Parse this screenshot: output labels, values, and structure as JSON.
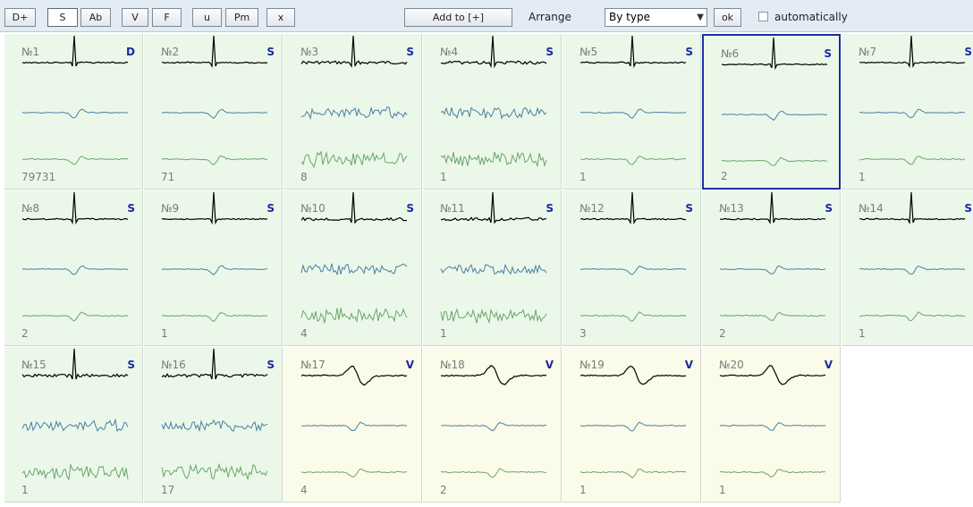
{
  "toolbar": {
    "buttons": [
      "D+",
      "S",
      "Ab",
      "V",
      "F",
      "u",
      "Pm",
      "x"
    ],
    "active_button": "S",
    "add_to_label": "Add to  [+]",
    "arrange_label": "Arrange",
    "arrange_value": "By type",
    "ok_label": "ok",
    "automatically_label": "automatically",
    "automatically_checked": false
  },
  "colors": {
    "lead1": "#000000",
    "lead2": "#4a7ea5",
    "lead3": "#6aa56a",
    "selected_border": "#1c2fa3",
    "type_letter": "#1a2aa0"
  },
  "cells": [
    {
      "num": "№1",
      "type": "D",
      "count": "79731",
      "bg": "green",
      "selected": false
    },
    {
      "num": "№2",
      "type": "S",
      "count": "71",
      "bg": "green",
      "selected": false
    },
    {
      "num": "№3",
      "type": "S",
      "count": "8",
      "bg": "green",
      "selected": false
    },
    {
      "num": "№4",
      "type": "S",
      "count": "1",
      "bg": "green",
      "selected": false
    },
    {
      "num": "№5",
      "type": "S",
      "count": "1",
      "bg": "green",
      "selected": false
    },
    {
      "num": "№6",
      "type": "S",
      "count": "2",
      "bg": "green",
      "selected": true
    },
    {
      "num": "№7",
      "type": "S",
      "count": "1",
      "bg": "green",
      "selected": false
    },
    {
      "num": "№8",
      "type": "S",
      "count": "2",
      "bg": "green",
      "selected": false
    },
    {
      "num": "№9",
      "type": "S",
      "count": "1",
      "bg": "green",
      "selected": false
    },
    {
      "num": "№10",
      "type": "S",
      "count": "4",
      "bg": "green",
      "selected": false
    },
    {
      "num": "№11",
      "type": "S",
      "count": "1",
      "bg": "green",
      "selected": false
    },
    {
      "num": "№12",
      "type": "S",
      "count": "3",
      "bg": "green",
      "selected": false
    },
    {
      "num": "№13",
      "type": "S",
      "count": "2",
      "bg": "green",
      "selected": false
    },
    {
      "num": "№14",
      "type": "S",
      "count": "1",
      "bg": "green",
      "selected": false
    },
    {
      "num": "№15",
      "type": "S",
      "count": "1",
      "bg": "green",
      "selected": false
    },
    {
      "num": "№16",
      "type": "S",
      "count": "17",
      "bg": "green",
      "selected": false
    },
    {
      "num": "№17",
      "type": "V",
      "count": "4",
      "bg": "yellow",
      "selected": false
    },
    {
      "num": "№18",
      "type": "V",
      "count": "2",
      "bg": "yellow",
      "selected": false
    },
    {
      "num": "№19",
      "type": "V",
      "count": "1",
      "bg": "yellow",
      "selected": false
    },
    {
      "num": "№20",
      "type": "V",
      "count": "1",
      "bg": "yellow",
      "selected": false
    }
  ]
}
